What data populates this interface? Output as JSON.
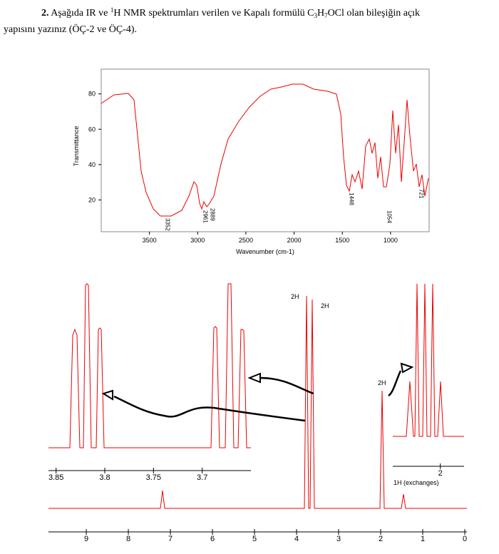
{
  "question": {
    "number": "2.",
    "text_a": "Aşağıda IR ve ",
    "sup": "1",
    "text_b": "H NMR spektrumları verilen ve  Kapalı formülü C",
    "sub_a": "3",
    "text_c": "H",
    "sub_b": "7",
    "text_d": "OCl olan bileşiğin açık",
    "line2": "yapısını yazınız (ÖÇ-2 ve ÖÇ-4)."
  },
  "ir": {
    "xlabel": "Wavenumber (cm-1)",
    "ylabel": "Transmittance",
    "xlim": [
      4000,
      600
    ],
    "ylim": [
      2,
      94
    ],
    "xticks": [
      3500,
      3000,
      2500,
      2000,
      1500,
      1000
    ],
    "yticks": [
      20,
      40,
      60,
      80
    ],
    "peaks": [
      3352,
      2961,
      2889,
      1448,
      1054,
      721
    ]
  },
  "nmr": {
    "xlim": [
      9.95,
      0
    ],
    "xticks": [
      9,
      8,
      7,
      6,
      5,
      4,
      3,
      2,
      1,
      0
    ],
    "inset1": {
      "xlim": [
        3.86,
        3.65
      ],
      "xticks": [
        3.85,
        3.8,
        3.75,
        3.7
      ]
    },
    "inset2": {
      "xlim": [
        2.06,
        1.97
      ],
      "xticks": [
        2
      ],
      "note": "1H (exchanges)"
    },
    "labels": [
      "2H",
      "2H",
      "2H"
    ]
  }
}
